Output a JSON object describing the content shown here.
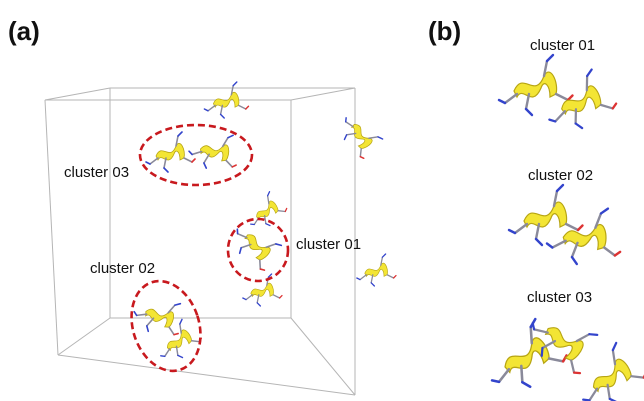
{
  "panels": [
    {
      "label": "(a)",
      "clusters": [
        "cluster 03",
        "cluster 01",
        "cluster 02"
      ]
    },
    {
      "label": "(b)",
      "clusters": [
        "cluster 01",
        "cluster 02",
        "cluster 03"
      ]
    }
  ]
}
